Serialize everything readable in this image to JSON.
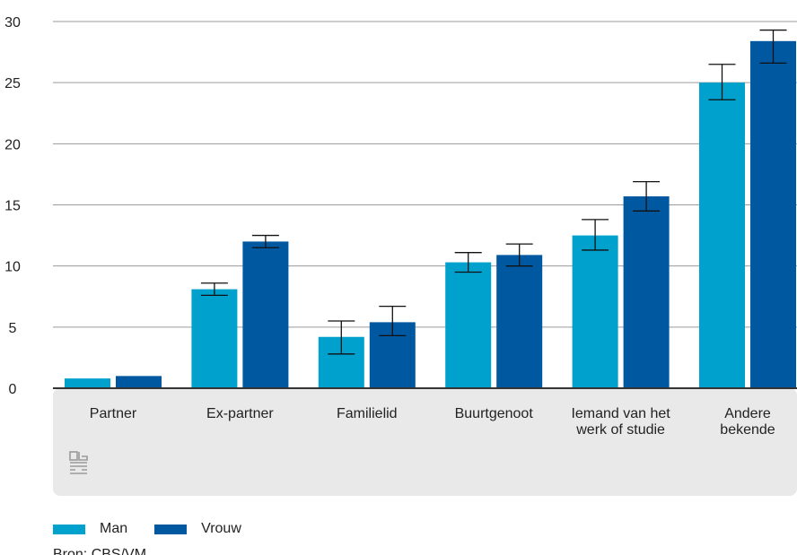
{
  "chart_data": {
    "type": "bar",
    "categories": [
      "Partner",
      "Ex-partner",
      "Familielid",
      "Buurtgenoot",
      "Iemand van het werk of studie",
      "Andere bekende"
    ],
    "category_label_lines": [
      [
        "Partner"
      ],
      [
        "Ex-partner"
      ],
      [
        "Familielid"
      ],
      [
        "Buurtgenoot"
      ],
      [
        "Iemand van het",
        "werk of studie"
      ],
      [
        "Andere",
        "bekende"
      ]
    ],
    "series": [
      {
        "name": "Man",
        "color": "#00a1cd",
        "values": [
          0.8,
          8.1,
          4.2,
          10.3,
          12.5,
          25.0
        ],
        "error_low": [
          0.8,
          7.6,
          2.8,
          9.5,
          11.3,
          23.6
        ],
        "error_high": [
          0.8,
          8.6,
          5.5,
          11.1,
          13.8,
          26.5
        ]
      },
      {
        "name": "Vrouw",
        "color": "#0058a1",
        "values": [
          1.0,
          12.0,
          5.4,
          10.9,
          15.7,
          28.4
        ],
        "error_low": [
          1.0,
          11.5,
          4.3,
          10.0,
          14.5,
          26.6
        ],
        "error_high": [
          1.0,
          12.5,
          6.7,
          11.8,
          16.9,
          29.3
        ]
      }
    ],
    "yticks": [
      0,
      5,
      10,
      15,
      20,
      25,
      30
    ],
    "ylim": [
      0,
      30
    ],
    "grid": true,
    "legend_position": "bottom-left",
    "logo": "cbs-logo-icon"
  },
  "source_text": "Bron: CBS/VM"
}
